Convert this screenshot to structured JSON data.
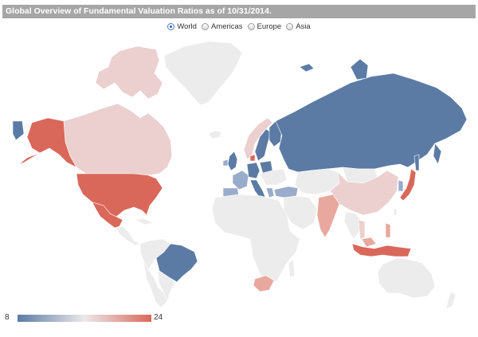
{
  "title": "Global Overview of Fundamental Valuation Ratios as of 10/31/2014.",
  "region_options": [
    {
      "label": "World",
      "selected": true
    },
    {
      "label": "Americas",
      "selected": false
    },
    {
      "label": "Europe",
      "selected": false
    },
    {
      "label": "Asia",
      "selected": false
    }
  ],
  "legend": {
    "min_label": "8",
    "max_label": "24",
    "low_color": "#5b7ba5",
    "mid_color": "#ece8ea",
    "high_color": "#d9685a"
  },
  "colors": {
    "no_data": "#ececec",
    "country_border": "#ffffff",
    "title_bar": "#a6a6a6"
  }
}
